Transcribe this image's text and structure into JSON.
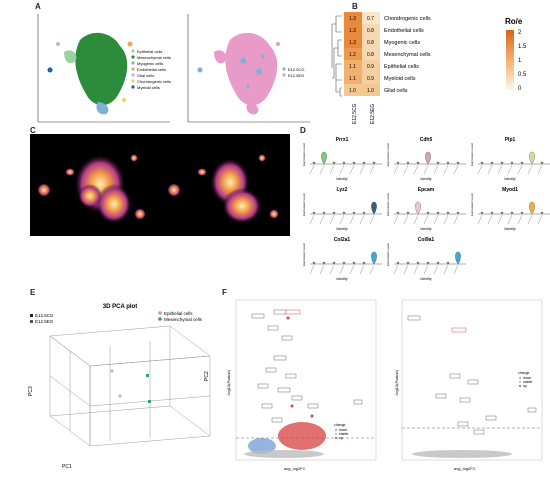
{
  "panels": {
    "a": {
      "label": "A",
      "legend_left": [
        "Epithelial cells",
        "Mesenchymal cells",
        "Myogenic cells",
        "Endothelial cells",
        "Glial cells",
        "Chondrogenic cells",
        "Myeloid cells"
      ],
      "legend_left_colors": [
        "#9bd3a0",
        "#2c8c3c",
        "#7fb0d8",
        "#f2a65a",
        "#b8b8e0",
        "#f0d060",
        "#1f5fa8"
      ],
      "legend_right": [
        "E12.5CG",
        "E12.5EG"
      ],
      "legend_right_colors": [
        "#7fb0d8",
        "#e89ac8"
      ]
    },
    "b": {
      "label": "B",
      "title": "Ro/e",
      "rows": [
        "Chondrogenic cells",
        "Endothelial cells",
        "Myogenic cells",
        "Mesenchymal cells",
        "Epithelial cells",
        "Myeloid cells",
        "Glial cells"
      ],
      "col1": [
        "1.3",
        "1.3",
        "1.3",
        "1.2",
        "1.1",
        "1.1",
        "1.0"
      ],
      "col2": [
        "0.7",
        "0.8",
        "0.8",
        "0.8",
        "0.9",
        "0.9",
        "1.0"
      ],
      "cols": [
        "E12.5CG",
        "E12.5EG"
      ],
      "scale": [
        "2",
        "1.5",
        "1",
        "0.5",
        "0"
      ]
    },
    "c": {
      "label": "C"
    },
    "d": {
      "label": "D",
      "genes": [
        "Prrx1",
        "Cdh5",
        "Plp1",
        "Lyz2",
        "Epcam",
        "Myod1",
        "Col2a1",
        "Col9a1"
      ],
      "ylabel": "Expression Level",
      "xlabel": "Identity"
    },
    "e": {
      "label": "E",
      "title": "3D PCA plot",
      "legend_left": [
        "E12.5CG",
        "E12.5EG"
      ],
      "legend_right": [
        "Epithelial cells",
        "Mesenchymal cells"
      ],
      "axes": {
        "x": "PC1",
        "y": "PC2",
        "z": "PC3"
      }
    },
    "f": {
      "label": "F",
      "ylabel": "-log10(Pvalue)",
      "xlabel": "avg_log2FC",
      "legend_title": "change",
      "legend_items": [
        "down",
        "stable",
        "up"
      ]
    }
  }
}
